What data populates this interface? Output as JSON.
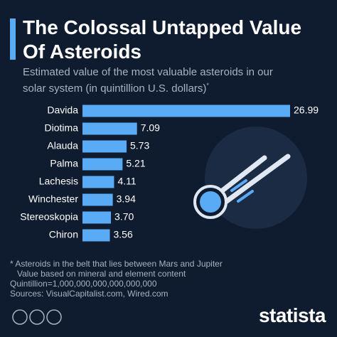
{
  "chart_data": {
    "type": "bar",
    "orientation": "horizontal",
    "title": [
      "The Colossal Untapped Value",
      "Of Asteroids"
    ],
    "subtitle": "Estimated value of the most valuable asteroids in our solar system (in quintillion U.S. dollars)",
    "subtitle_mark": "*",
    "categories": [
      "Davida",
      "Diotima",
      "Alauda",
      "Palma",
      "Lachesis",
      "Winchester",
      "Stereoskopia",
      "Chiron"
    ],
    "values": [
      26.99,
      7.09,
      5.73,
      5.21,
      4.11,
      3.94,
      3.7,
      3.56
    ],
    "value_labels": [
      "26.99",
      "7.09",
      "5.73",
      "5.21",
      "4.11",
      "3.94",
      "3.70",
      "3.56"
    ],
    "color": "#5aabf5",
    "notes": [
      "* Asteroids in the belt that lies between Mars and Jupiter",
      "Value based on mineral and element content",
      "Quintillion=1,000,000,000,000,000,000",
      "Sources: VisualCapitalist.com, Wired.com"
    ],
    "brand": "statista"
  }
}
